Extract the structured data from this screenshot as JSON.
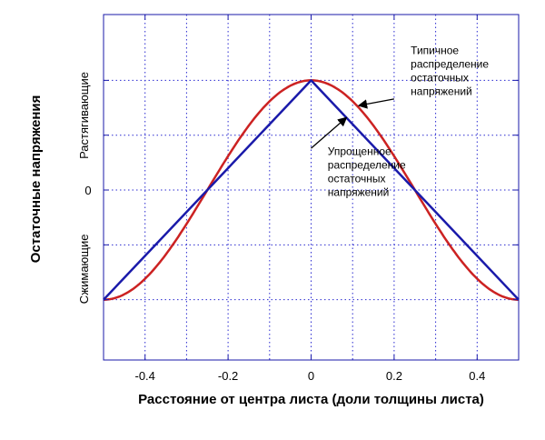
{
  "chart_data": {
    "type": "line",
    "xlabel": "Расстояние от центра листа (доли толщины листа)",
    "ylabel": "Остаточные напряжения",
    "xlim": [
      -0.5,
      0.5
    ],
    "ylim": [
      -1.55,
      1.6
    ],
    "x_ticks": [
      -0.4,
      -0.2,
      0,
      0.2,
      0.4
    ],
    "x_tick_labels": [
      "-0.4",
      "-0.2",
      "0",
      "0.2",
      "0.4"
    ],
    "y_zero_label": "0",
    "y_region_labels": {
      "tensile": "Растягивающие",
      "compressive": "Сжимающие"
    },
    "grid": true,
    "series": [
      {
        "name": "Типичное распределение остаточных напряжений",
        "color": "#cc2222",
        "curve": "cosine",
        "x": [
          -0.5,
          -0.4,
          -0.3,
          -0.25,
          -0.2,
          -0.1,
          0,
          0.1,
          0.2,
          0.25,
          0.3,
          0.4,
          0.5
        ],
        "y": [
          -1.0,
          -0.81,
          -0.31,
          0.0,
          0.31,
          0.81,
          1.0,
          0.81,
          0.31,
          0.0,
          -0.31,
          -0.81,
          -1.0
        ]
      },
      {
        "name": "Упрощенное распределение остаточных напряжений",
        "color": "#1a1aaa",
        "curve": "linear",
        "x": [
          -0.5,
          0,
          0.5
        ],
        "y": [
          -1.0,
          1.0,
          -1.0
        ]
      }
    ],
    "annotations": [
      {
        "lines": [
          "Типичное",
          "распределение",
          "остаточных",
          "напряжений"
        ],
        "text_at": [
          0.24,
          1.24
        ],
        "arrow_from": [
          0.2,
          0.83
        ],
        "arrow_to": [
          0.115,
          0.77
        ]
      },
      {
        "lines": [
          "Упрощенное",
          "распределение",
          "остаточных",
          "напряжений"
        ],
        "text_at": [
          0.04,
          0.32
        ],
        "arrow_from": [
          0.0,
          0.38
        ],
        "arrow_to": [
          0.085,
          0.66
        ]
      }
    ]
  }
}
